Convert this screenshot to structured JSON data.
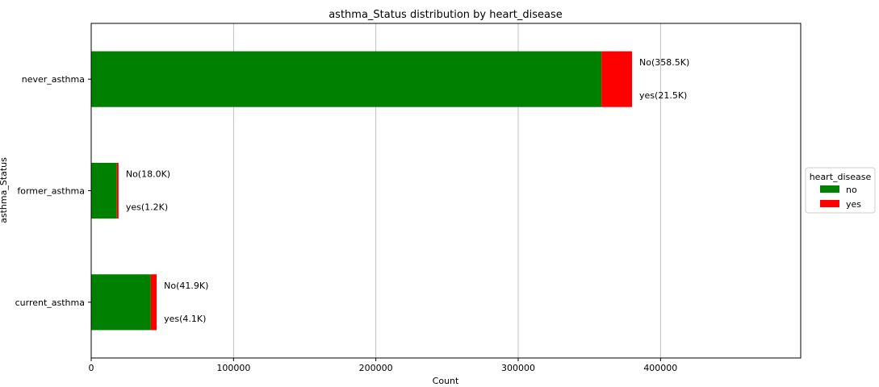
{
  "chart_data": {
    "type": "bar",
    "orientation": "horizontal",
    "stacked": true,
    "title": "asthma_Status distribution by heart_disease",
    "xlabel": "Count",
    "ylabel": "asthma_Status",
    "categories": [
      "never_asthma",
      "former_asthma",
      "current_asthma"
    ],
    "series": [
      {
        "name": "no",
        "values": [
          358500,
          18000,
          41900
        ],
        "color": "#008000"
      },
      {
        "name": "yes",
        "values": [
          21500,
          1200,
          4100
        ],
        "color": "#ff0000"
      }
    ],
    "annotations": [
      {
        "category": "never_asthma",
        "no_label": "No(358.5K)",
        "yes_label": "yes(21.5K)"
      },
      {
        "category": "former_asthma",
        "no_label": "No(18.0K)",
        "yes_label": "yes(1.2K)"
      },
      {
        "category": "current_asthma",
        "no_label": "No(41.9K)",
        "yes_label": "yes(4.1K)"
      }
    ],
    "xlim": [
      0,
      498500
    ],
    "xticks": [
      0,
      100000,
      200000,
      300000,
      400000
    ],
    "xtick_labels": [
      "0",
      "100000",
      "200000",
      "300000",
      "400000"
    ],
    "grid": "vertical",
    "legend": {
      "title": "heart_disease",
      "placement": "right",
      "entries": [
        "no",
        "yes"
      ]
    }
  }
}
